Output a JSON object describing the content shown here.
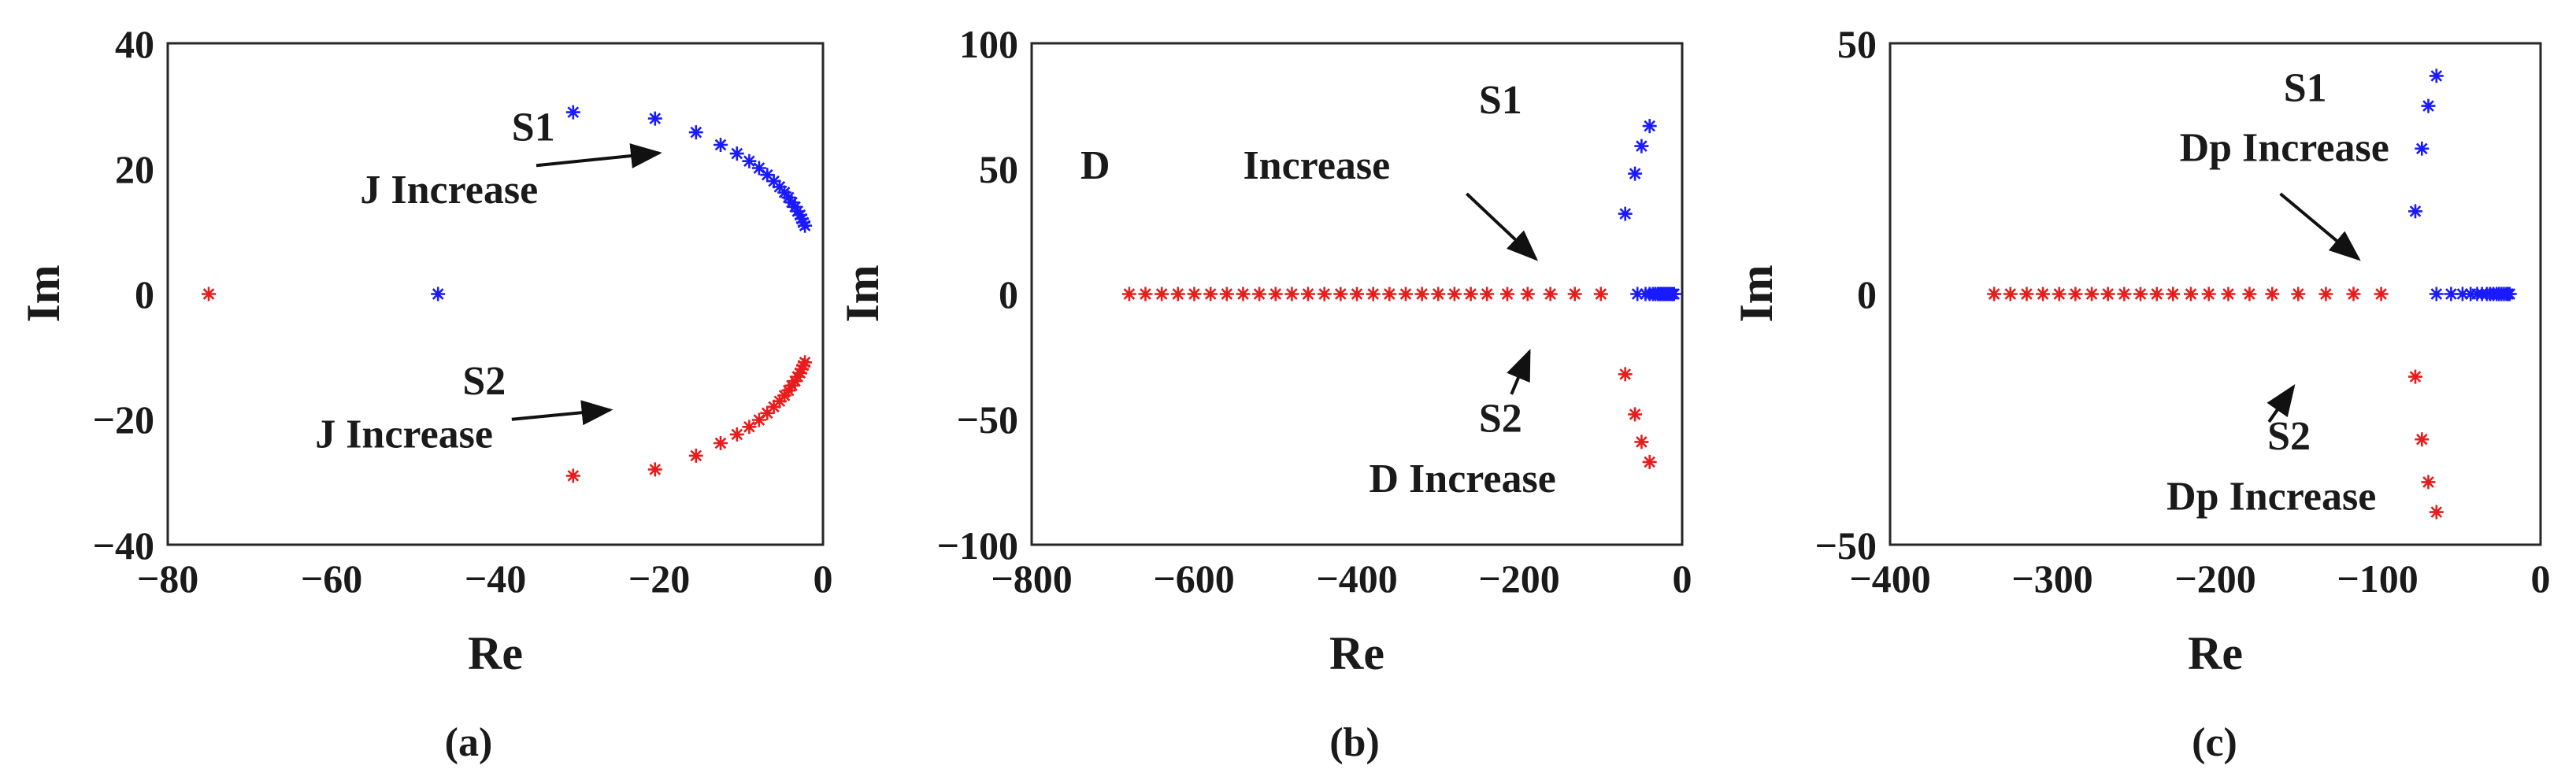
{
  "chart_data": [
    {
      "type": "scatter",
      "subtitle": "(a)",
      "xlabel": "Re",
      "ylabel": "Im",
      "xlim": [
        -80,
        0
      ],
      "ylim": [
        -40,
        40
      ],
      "xticks": [
        "−80",
        "−60",
        "−40",
        "−20",
        "0"
      ],
      "yticks": [
        "40",
        "20",
        "0",
        "−20",
        "−40"
      ],
      "xtick_values": [
        -80,
        -60,
        -40,
        -20,
        0
      ],
      "ytick_values": [
        40,
        20,
        0,
        -20,
        -40
      ],
      "series": [
        {
          "name": "S1",
          "color": "#1a1aff",
          "points": [
            [
              -47,
              0
            ],
            [
              -30.5,
              29
            ],
            [
              -20.5,
              28
            ],
            [
              -15.5,
              25.8
            ],
            [
              -12.5,
              23.8
            ],
            [
              -10.5,
              22.4
            ],
            [
              -9,
              21.2
            ],
            [
              -7.8,
              20.1
            ],
            [
              -6.8,
              19
            ],
            [
              -6,
              18
            ],
            [
              -5.3,
              17.1
            ],
            [
              -4.7,
              16.2
            ],
            [
              -4.2,
              15.4
            ],
            [
              -3.8,
              14.6
            ],
            [
              -3.4,
              13.9
            ],
            [
              -3.1,
              13.2
            ],
            [
              -2.8,
              12.6
            ],
            [
              -2.6,
              12
            ],
            [
              -2.4,
              11.4
            ],
            [
              -2.2,
              10.9
            ]
          ]
        },
        {
          "name": "S2",
          "color": "#e81c1c",
          "points": [
            [
              -75,
              0
            ],
            [
              -30.5,
              -29
            ],
            [
              -20.5,
              -28
            ],
            [
              -15.5,
              -25.8
            ],
            [
              -12.5,
              -23.8
            ],
            [
              -10.5,
              -22.4
            ],
            [
              -9,
              -21.2
            ],
            [
              -7.8,
              -20.1
            ],
            [
              -6.8,
              -19
            ],
            [
              -6,
              -18
            ],
            [
              -5.3,
              -17.1
            ],
            [
              -4.7,
              -16.2
            ],
            [
              -4.2,
              -15.4
            ],
            [
              -3.8,
              -14.6
            ],
            [
              -3.4,
              -13.9
            ],
            [
              -3.1,
              -13.2
            ],
            [
              -2.8,
              -12.6
            ],
            [
              -2.6,
              -12
            ],
            [
              -2.4,
              -11.4
            ],
            [
              -2.2,
              -10.9
            ]
          ]
        }
      ],
      "annotations": [
        {
          "label": "S1",
          "text_at": [
            -38,
            24.5
          ],
          "lines": [
            "S1"
          ],
          "arrow": [
            [
              -35,
              20.5
            ],
            [
              -20,
              22.5
            ]
          ]
        },
        {
          "label": "J Increase",
          "text_at": [
            -56.5,
            14.5
          ],
          "lines": [
            "J Increase"
          ],
          "arrow": null
        },
        {
          "label": "S2",
          "text_at": [
            -44,
            -16
          ],
          "lines": [
            "S2"
          ],
          "arrow": [
            [
              -38,
              -20
            ],
            [
              -26,
              -18.5
            ]
          ]
        },
        {
          "label": "J Increase",
          "text_at": [
            -62,
            -24.5
          ],
          "lines": [
            "J Increase"
          ],
          "arrow": null
        }
      ]
    },
    {
      "type": "scatter",
      "subtitle": "(b)",
      "xlabel": "Re",
      "ylabel": "Im",
      "xlim": [
        -800,
        0
      ],
      "ylim": [
        -100,
        100
      ],
      "xticks": [
        "−800",
        "−600",
        "−400",
        "−200",
        "0"
      ],
      "yticks": [
        "100",
        "50",
        "0",
        "−50",
        "−100"
      ],
      "xtick_values": [
        -800,
        -600,
        -400,
        -200,
        0
      ],
      "ytick_values": [
        100,
        50,
        0,
        -50,
        -100
      ],
      "series": [
        {
          "name": "S1",
          "color": "#1a1aff",
          "points": [
            [
              -70,
              32
            ],
            [
              -58,
              48
            ],
            [
              -50,
              59
            ],
            [
              -40,
              67
            ],
            [
              -55,
              0
            ],
            [
              -45,
              0
            ],
            [
              -40,
              0
            ],
            [
              -36,
              0
            ],
            [
              -33,
              0
            ],
            [
              -30,
              0
            ],
            [
              -28,
              0
            ],
            [
              -26,
              0
            ],
            [
              -24,
              0
            ],
            [
              -22,
              0
            ],
            [
              -20,
              0
            ],
            [
              -18,
              0
            ],
            [
              -16,
              0
            ],
            [
              -14,
              0
            ],
            [
              -12,
              0
            ],
            [
              -10,
              0
            ]
          ]
        },
        {
          "name": "S2",
          "color": "#e81c1c",
          "points": [
            [
              -680,
              0
            ],
            [
              -660,
              0
            ],
            [
              -640,
              0
            ],
            [
              -620,
              0
            ],
            [
              -600,
              0
            ],
            [
              -580,
              0
            ],
            [
              -560,
              0
            ],
            [
              -540,
              0
            ],
            [
              -520,
              0
            ],
            [
              -500,
              0
            ],
            [
              -480,
              0
            ],
            [
              -460,
              0
            ],
            [
              -440,
              0
            ],
            [
              -420,
              0
            ],
            [
              -400,
              0
            ],
            [
              -380,
              0
            ],
            [
              -360,
              0
            ],
            [
              -340,
              0
            ],
            [
              -320,
              0
            ],
            [
              -300,
              0
            ],
            [
              -280,
              0
            ],
            [
              -260,
              0
            ],
            [
              -240,
              0
            ],
            [
              -215,
              0
            ],
            [
              -190,
              0
            ],
            [
              -162,
              0
            ],
            [
              -132,
              0
            ],
            [
              -100,
              0
            ],
            [
              -70,
              -32
            ],
            [
              -58,
              -48
            ],
            [
              -50,
              -59
            ],
            [
              -40,
              -67
            ]
          ]
        }
      ],
      "annotations": [
        {
          "label": "S1",
          "text_at": [
            -250,
            72
          ],
          "lines": [
            "S1"
          ],
          "arrow": null
        },
        {
          "label": "D",
          "text_at": [
            -740,
            46
          ],
          "lines": [
            "D"
          ],
          "arrow": null
        },
        {
          "label": "Increase",
          "text_at": [
            -540,
            46
          ],
          "lines": [
            "Increase"
          ],
          "arrow": [
            [
              -265,
              40
            ],
            [
              -180,
              14
            ]
          ]
        },
        {
          "label": "S2",
          "text_at": [
            -250,
            -55
          ],
          "lines": [
            "S2"
          ],
          "arrow": [
            [
              -210,
              -40
            ],
            [
              -188,
              -23
            ]
          ]
        },
        {
          "label": "D Increase",
          "text_at": [
            -385,
            -79
          ],
          "lines": [
            "D Increase"
          ],
          "arrow": null
        }
      ]
    },
    {
      "type": "scatter",
      "subtitle": "(c)",
      "xlabel": "Re",
      "ylabel": "Im",
      "xlim": [
        -400,
        0
      ],
      "ylim": [
        -50,
        50
      ],
      "xticks": [
        "−400",
        "−300",
        "−200",
        "−100",
        "0"
      ],
      "yticks": [
        "50",
        "0",
        "−50"
      ],
      "xtick_values": [
        -400,
        -300,
        -200,
        -100,
        0
      ],
      "ytick_values": [
        50,
        0,
        -50
      ],
      "series": [
        {
          "name": "S1",
          "color": "#1a1aff",
          "points": [
            [
              -77,
              16.5
            ],
            [
              -73,
              29
            ],
            [
              -69,
              37.5
            ],
            [
              -64,
              43.5
            ],
            [
              -64,
              0
            ],
            [
              -55,
              0
            ],
            [
              -48,
              0
            ],
            [
              -43,
              0
            ],
            [
              -39,
              0
            ],
            [
              -36,
              0
            ],
            [
              -33,
              0
            ],
            [
              -31,
              0
            ],
            [
              -29,
              0
            ],
            [
              -27,
              0
            ],
            [
              -25.5,
              0
            ],
            [
              -24,
              0
            ],
            [
              -22.5,
              0
            ],
            [
              -21,
              0
            ],
            [
              -20,
              0
            ],
            [
              -19,
              0
            ]
          ]
        },
        {
          "name": "S2",
          "color": "#e81c1c",
          "points": [
            [
              -336,
              0
            ],
            [
              -326,
              0
            ],
            [
              -316,
              0
            ],
            [
              -306,
              0
            ],
            [
              -296,
              0
            ],
            [
              -286,
              0
            ],
            [
              -276,
              0
            ],
            [
              -266,
              0
            ],
            [
              -256,
              0
            ],
            [
              -246,
              0
            ],
            [
              -236,
              0
            ],
            [
              -226,
              0
            ],
            [
              -215,
              0
            ],
            [
              -204,
              0
            ],
            [
              -192,
              0
            ],
            [
              -179,
              0
            ],
            [
              -165,
              0
            ],
            [
              -149,
              0
            ],
            [
              -132,
              0
            ],
            [
              -115,
              0
            ],
            [
              -98,
              0
            ],
            [
              -77,
              -16.5
            ],
            [
              -73,
              -29
            ],
            [
              -69,
              -37.5
            ],
            [
              -64,
              -43.5
            ]
          ]
        }
      ],
      "annotations": [
        {
          "label": "S1",
          "text_at": [
            -158,
            38.5
          ],
          "lines": [
            "S1"
          ],
          "arrow": null
        },
        {
          "label": "Dp Increase",
          "text_at": [
            -222,
            26.5
          ],
          "lines": [
            "Dp Increase"
          ],
          "arrow": [
            [
              -160,
              20
            ],
            [
              -112,
              7
            ]
          ]
        },
        {
          "label": "S2",
          "text_at": [
            -168,
            -31
          ],
          "lines": [
            "S2"
          ],
          "arrow": [
            [
              -167,
              -25.5
            ],
            [
              -152,
              -18.5
            ]
          ]
        },
        {
          "label": "Dp Increase",
          "text_at": [
            -230,
            -43
          ],
          "lines": [
            "Dp Increase"
          ],
          "arrow": null
        }
      ]
    }
  ]
}
